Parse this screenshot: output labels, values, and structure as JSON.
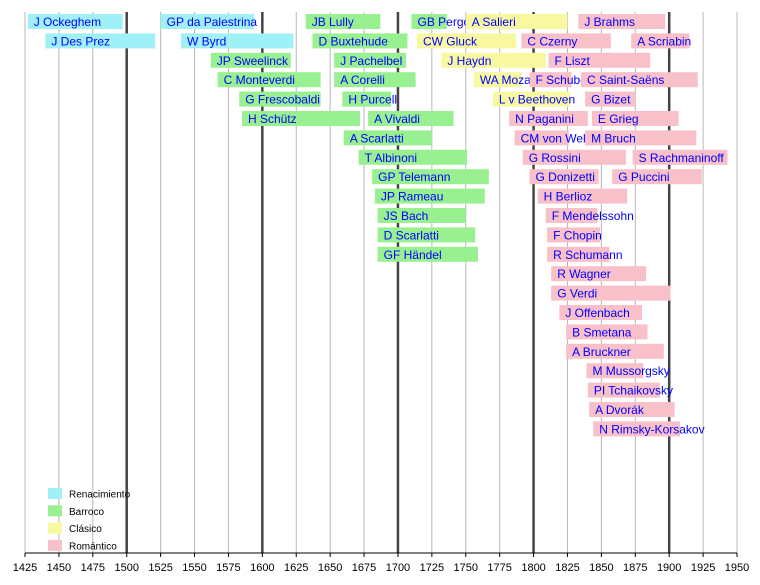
{
  "chart_data": {
    "type": "bar",
    "orientation": "horizontal-timeline",
    "x_ticks": [
      1425,
      1450,
      1475,
      1500,
      1525,
      1550,
      1575,
      1600,
      1625,
      1650,
      1675,
      1700,
      1725,
      1750,
      1775,
      1800,
      1825,
      1850,
      1875,
      1900,
      1925,
      1950
    ],
    "xlim": [
      1425,
      1950
    ],
    "grid": true,
    "legend_position": "bottom-left",
    "periods": [
      {
        "key": "renacimiento",
        "label": "Renacimiento",
        "color": "#a0f0f8"
      },
      {
        "key": "barroco",
        "label": "Barroco",
        "color": "#98f090"
      },
      {
        "key": "clasico",
        "label": "Clásico",
        "color": "#f8f8a0"
      },
      {
        "key": "romantico",
        "label": "Romántico",
        "color": "#f8c0c8"
      }
    ],
    "composers": [
      {
        "name": "J Ockeghem",
        "start": 1427,
        "end": 1497,
        "period": "renacimiento"
      },
      {
        "name": "J Des Prez",
        "start": 1440,
        "end": 1521,
        "period": "renacimiento"
      },
      {
        "name": "GP da Palestrina",
        "start": 1525,
        "end": 1594,
        "period": "renacimiento"
      },
      {
        "name": "W Byrd",
        "start": 1540,
        "end": 1623,
        "period": "renacimiento"
      },
      {
        "name": "JP Sweelinck",
        "start": 1562,
        "end": 1621,
        "period": "barroco"
      },
      {
        "name": "C Monteverdi",
        "start": 1567,
        "end": 1643,
        "period": "barroco"
      },
      {
        "name": "G Frescobaldi",
        "start": 1583,
        "end": 1643,
        "period": "barroco"
      },
      {
        "name": "H Schütz",
        "start": 1585,
        "end": 1672,
        "period": "barroco"
      },
      {
        "name": "JB Lully",
        "start": 1632,
        "end": 1687,
        "period": "barroco"
      },
      {
        "name": "D Buxtehude",
        "start": 1637,
        "end": 1707,
        "period": "barroco"
      },
      {
        "name": "J Pachelbel",
        "start": 1653,
        "end": 1706,
        "period": "barroco"
      },
      {
        "name": "A Corelli",
        "start": 1653,
        "end": 1713,
        "period": "barroco"
      },
      {
        "name": "H Purcell",
        "start": 1659,
        "end": 1695,
        "period": "barroco"
      },
      {
        "name": "A Scarlatti",
        "start": 1660,
        "end": 1725,
        "period": "barroco"
      },
      {
        "name": "T Albinoni",
        "start": 1671,
        "end": 1751,
        "period": "barroco"
      },
      {
        "name": "A Vivaldi",
        "start": 1678,
        "end": 1741,
        "period": "barroco"
      },
      {
        "name": "GP Telemann",
        "start": 1681,
        "end": 1767,
        "period": "barroco"
      },
      {
        "name": "JP Rameau",
        "start": 1683,
        "end": 1764,
        "period": "barroco"
      },
      {
        "name": "JS Bach",
        "start": 1685,
        "end": 1750,
        "period": "barroco"
      },
      {
        "name": "D Scarlatti",
        "start": 1685,
        "end": 1757,
        "period": "barroco"
      },
      {
        "name": "GF Händel",
        "start": 1685,
        "end": 1759,
        "period": "barroco"
      },
      {
        "name": "GB Pergolesi",
        "start": 1710,
        "end": 1736,
        "period": "barroco"
      },
      {
        "name": "CW Gluck",
        "start": 1714,
        "end": 1787,
        "period": "clasico"
      },
      {
        "name": "J Haydn",
        "start": 1732,
        "end": 1809,
        "period": "clasico"
      },
      {
        "name": "A Salieri",
        "start": 1750,
        "end": 1825,
        "period": "clasico"
      },
      {
        "name": "WA Mozart",
        "start": 1756,
        "end": 1791,
        "period": "clasico"
      },
      {
        "name": "L v Beethoven",
        "start": 1770,
        "end": 1827,
        "period": "clasico"
      },
      {
        "name": "N Paganini",
        "start": 1782,
        "end": 1840,
        "period": "romantico"
      },
      {
        "name": "CM von Weber",
        "start": 1786,
        "end": 1826,
        "period": "romantico"
      },
      {
        "name": "C Czerny",
        "start": 1791,
        "end": 1857,
        "period": "romantico"
      },
      {
        "name": "G Rossini",
        "start": 1792,
        "end": 1868,
        "period": "romantico"
      },
      {
        "name": "F Schubert",
        "start": 1797,
        "end": 1828,
        "period": "romantico"
      },
      {
        "name": "G Donizetti",
        "start": 1797,
        "end": 1848,
        "period": "romantico"
      },
      {
        "name": "H Berlioz",
        "start": 1803,
        "end": 1869,
        "period": "romantico"
      },
      {
        "name": "F Mendelssohn",
        "start": 1809,
        "end": 1847,
        "period": "romantico"
      },
      {
        "name": "F Chopin",
        "start": 1810,
        "end": 1849,
        "period": "romantico"
      },
      {
        "name": "R Schumann",
        "start": 1810,
        "end": 1856,
        "period": "romantico"
      },
      {
        "name": "F Liszt",
        "start": 1811,
        "end": 1886,
        "period": "romantico"
      },
      {
        "name": "R Wagner",
        "start": 1813,
        "end": 1883,
        "period": "romantico"
      },
      {
        "name": "G Verdi",
        "start": 1813,
        "end": 1901,
        "period": "romantico"
      },
      {
        "name": "J Offenbach",
        "start": 1819,
        "end": 1880,
        "period": "romantico"
      },
      {
        "name": "B Smetana",
        "start": 1824,
        "end": 1884,
        "period": "romantico"
      },
      {
        "name": "A Bruckner",
        "start": 1824,
        "end": 1896,
        "period": "romantico"
      },
      {
        "name": "J Brahms",
        "start": 1833,
        "end": 1897,
        "period": "romantico"
      },
      {
        "name": "C Saint-Saëns",
        "start": 1835,
        "end": 1921,
        "period": "romantico"
      },
      {
        "name": "G Bizet",
        "start": 1838,
        "end": 1875,
        "period": "romantico"
      },
      {
        "name": "M Bruch",
        "start": 1838,
        "end": 1920,
        "period": "romantico"
      },
      {
        "name": "M Mussorgsky",
        "start": 1839,
        "end": 1881,
        "period": "romantico"
      },
      {
        "name": "PI Tchaikovsky",
        "start": 1840,
        "end": 1893,
        "period": "romantico"
      },
      {
        "name": "A Dvorák",
        "start": 1841,
        "end": 1904,
        "period": "romantico"
      },
      {
        "name": "E Grieg",
        "start": 1843,
        "end": 1907,
        "period": "romantico"
      },
      {
        "name": "N Rimsky-Korsakov",
        "start": 1844,
        "end": 1908,
        "period": "romantico"
      },
      {
        "name": "G Puccini",
        "start": 1858,
        "end": 1924,
        "period": "romantico"
      },
      {
        "name": "A Scriabin",
        "start": 1872,
        "end": 1915,
        "period": "romantico"
      },
      {
        "name": "S Rachmaninoff",
        "start": 1873,
        "end": 1943,
        "period": "romantico"
      }
    ]
  }
}
